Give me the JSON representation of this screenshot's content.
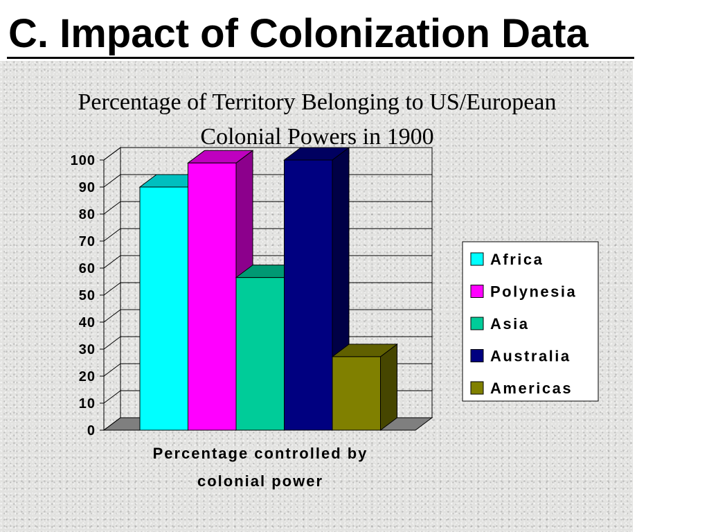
{
  "slide": {
    "title": "C. Impact of Colonization Data"
  },
  "chart_data": {
    "type": "bar",
    "title_lines": [
      "Percentage of Territory Belonging to US/European",
      "Colonial Powers in 1900"
    ],
    "xlabel_lines": [
      "Percentage controlled by",
      "colonial power"
    ],
    "ylabel": "",
    "ylim": [
      0,
      100
    ],
    "yticks": [
      "0",
      "10",
      "20",
      "30",
      "40",
      "50",
      "60",
      "70",
      "80",
      "90",
      "100"
    ],
    "grid": true,
    "three_d": true,
    "legend_position": "right",
    "series": [
      {
        "name": "Africa",
        "value": 90,
        "color": "#00ffff"
      },
      {
        "name": "Polynesia",
        "value": 98.9,
        "color": "#ff00ff"
      },
      {
        "name": "Asia",
        "value": 56.5,
        "color": "#00cc99"
      },
      {
        "name": "Australia",
        "value": 100,
        "color": "#000080"
      },
      {
        "name": "Americas",
        "value": 27.2,
        "color": "#808000"
      }
    ]
  }
}
